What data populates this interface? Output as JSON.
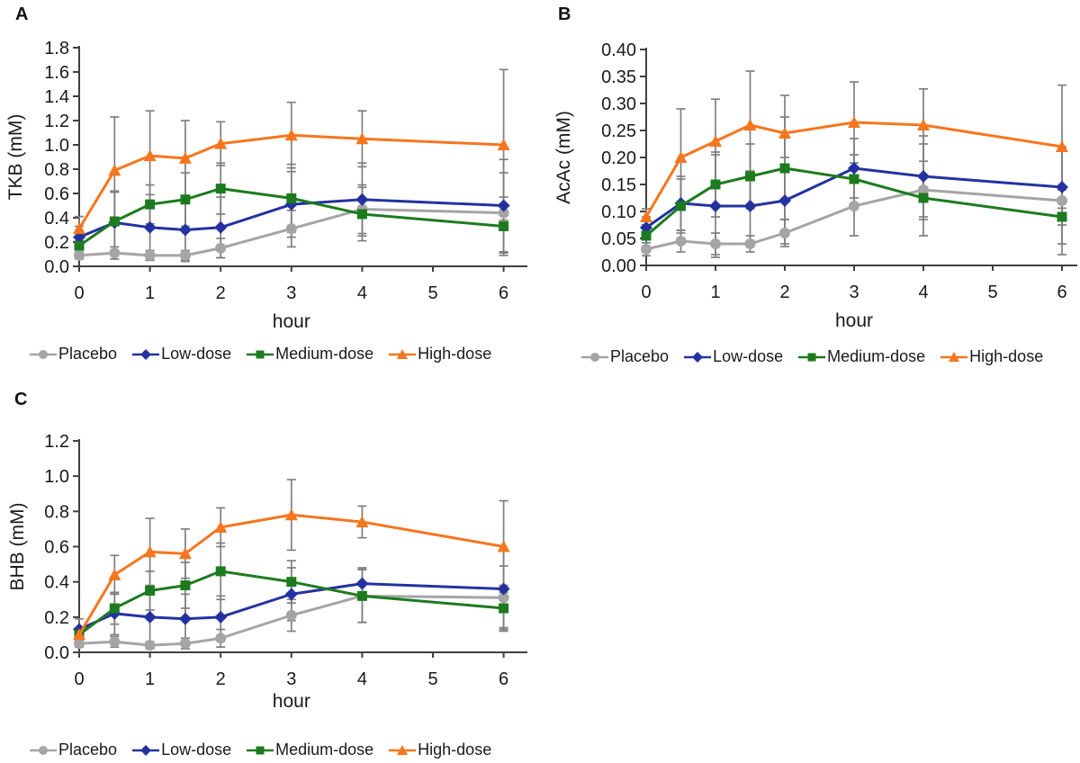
{
  "panel_labels": [
    "A",
    "B",
    "C"
  ],
  "colors": {
    "placebo": "#A5A5A5",
    "low_dose": "#2432A0",
    "medium_dose": "#1D7B1F",
    "high_dose": "#F5761E",
    "error_bar": "#7F7F7F",
    "axis": "#404040",
    "text": "#1A1A1A",
    "background": "#FFFFFF"
  },
  "chart_data": [
    {
      "panel": "A",
      "type": "line",
      "title": "",
      "xlabel": "hour",
      "ylabel": "TKB (mM)",
      "x": [
        0,
        0.5,
        1,
        1.5,
        2,
        3,
        4,
        6
      ],
      "xticks": [
        0,
        1,
        2,
        3,
        4,
        5,
        6
      ],
      "xlim": [
        0,
        6.3
      ],
      "ylim": [
        0,
        1.8
      ],
      "ytick_step": 0.2,
      "ytick_decimals": 1,
      "grid": false,
      "error_bars": true,
      "legend_position": "bottom",
      "series": [
        {
          "name": "Placebo",
          "marker": "circle",
          "color": "#A5A5A5",
          "values": [
            0.09,
            0.11,
            0.09,
            0.09,
            0.15,
            0.31,
            0.47,
            0.44
          ],
          "errors": [
            0.03,
            0.05,
            0.04,
            0.04,
            0.08,
            0.15,
            0.2,
            0.33
          ]
        },
        {
          "name": "Low-dose",
          "marker": "diamond",
          "color": "#2432A0",
          "values": [
            0.24,
            0.36,
            0.32,
            0.3,
            0.32,
            0.51,
            0.55,
            0.5
          ],
          "errors": [
            0.09,
            0.25,
            0.27,
            0.26,
            0.25,
            0.27,
            0.3,
            0.38
          ]
        },
        {
          "name": "Medium-dose",
          "marker": "square",
          "color": "#1D7B1F",
          "values": [
            0.17,
            0.37,
            0.51,
            0.55,
            0.64,
            0.56,
            0.43,
            0.33
          ],
          "errors": [
            0.07,
            0.25,
            0.16,
            0.22,
            0.21,
            0.28,
            0.22,
            0.24
          ]
        },
        {
          "name": "High-dose",
          "marker": "triangle",
          "color": "#F5761E",
          "values": [
            0.31,
            0.79,
            0.91,
            0.89,
            1.01,
            1.08,
            1.05,
            1.0
          ],
          "errors": [
            0.1,
            0.44,
            0.37,
            0.31,
            0.18,
            0.27,
            0.23,
            0.62
          ]
        }
      ]
    },
    {
      "panel": "B",
      "type": "line",
      "title": "",
      "xlabel": "hour",
      "ylabel": "AcAc (mM)",
      "x": [
        0,
        0.5,
        1,
        1.5,
        2,
        3,
        4,
        6
      ],
      "xticks": [
        0,
        1,
        2,
        3,
        4,
        5,
        6
      ],
      "xlim": [
        0,
        6.3
      ],
      "ylim": [
        0,
        0.4
      ],
      "ytick_step": 0.05,
      "ytick_decimals": 2,
      "grid": false,
      "error_bars": true,
      "legend_position": "bottom",
      "series": [
        {
          "name": "Placebo",
          "marker": "circle",
          "color": "#A5A5A5",
          "values": [
            0.03,
            0.045,
            0.04,
            0.04,
            0.06,
            0.11,
            0.14,
            0.12
          ],
          "errors": [
            0.012,
            0.02,
            0.02,
            0.015,
            0.025,
            0.055,
            0.085,
            0.1
          ]
        },
        {
          "name": "Low-dose",
          "marker": "diamond",
          "color": "#2432A0",
          "values": [
            0.07,
            0.115,
            0.11,
            0.11,
            0.12,
            0.18,
            0.165,
            0.145
          ],
          "errors": [
            0.02,
            0.05,
            0.095,
            0.065,
            0.08,
            0.055,
            0.075,
            0.07
          ]
        },
        {
          "name": "Medium-dose",
          "marker": "square",
          "color": "#1D7B1F",
          "values": [
            0.055,
            0.11,
            0.15,
            0.165,
            0.18,
            0.16,
            0.125,
            0.09
          ],
          "errors": [
            0.02,
            0.05,
            0.06,
            0.06,
            0.095,
            0.045,
            0.04,
            0.05
          ]
        },
        {
          "name": "High-dose",
          "marker": "triangle",
          "color": "#F5761E",
          "values": [
            0.09,
            0.2,
            0.23,
            0.26,
            0.245,
            0.265,
            0.26,
            0.22
          ],
          "errors": [
            0.015,
            0.09,
            0.078,
            0.1,
            0.07,
            0.075,
            0.067,
            0.114
          ]
        }
      ]
    },
    {
      "panel": "C",
      "type": "line",
      "title": "",
      "xlabel": "hour",
      "ylabel": "BHB (mM)",
      "x": [
        0,
        0.5,
        1,
        1.5,
        2,
        3,
        4,
        6
      ],
      "xticks": [
        0,
        1,
        2,
        3,
        4,
        5,
        6
      ],
      "xlim": [
        0,
        6.3
      ],
      "ylim": [
        0,
        1.2
      ],
      "ytick_step": 0.2,
      "ytick_decimals": 1,
      "grid": false,
      "error_bars": true,
      "legend_position": "bottom",
      "series": [
        {
          "name": "Placebo",
          "marker": "circle",
          "color": "#A5A5A5",
          "values": [
            0.05,
            0.06,
            0.04,
            0.05,
            0.08,
            0.21,
            0.32,
            0.31
          ],
          "errors": [
            0.02,
            0.03,
            0.02,
            0.03,
            0.05,
            0.09,
            0.15,
            0.18
          ]
        },
        {
          "name": "Low-dose",
          "marker": "diamond",
          "color": "#2432A0",
          "values": [
            0.13,
            0.22,
            0.2,
            0.19,
            0.2,
            0.33,
            0.39,
            0.36
          ],
          "errors": [
            0.06,
            0.12,
            0.17,
            0.14,
            0.12,
            0.15,
            0.09,
            0.22
          ]
        },
        {
          "name": "Medium-dose",
          "marker": "square",
          "color": "#1D7B1F",
          "values": [
            0.1,
            0.25,
            0.35,
            0.38,
            0.46,
            0.4,
            0.32,
            0.25
          ],
          "errors": [
            0.04,
            0.09,
            0.11,
            0.13,
            0.16,
            0.12,
            0.15,
            0.13
          ]
        },
        {
          "name": "High-dose",
          "marker": "triangle",
          "color": "#F5761E",
          "values": [
            0.1,
            0.44,
            0.57,
            0.56,
            0.71,
            0.78,
            0.74,
            0.6
          ],
          "errors": [
            0.03,
            0.11,
            0.19,
            0.14,
            0.11,
            0.2,
            0.09,
            0.26
          ]
        }
      ]
    }
  ]
}
